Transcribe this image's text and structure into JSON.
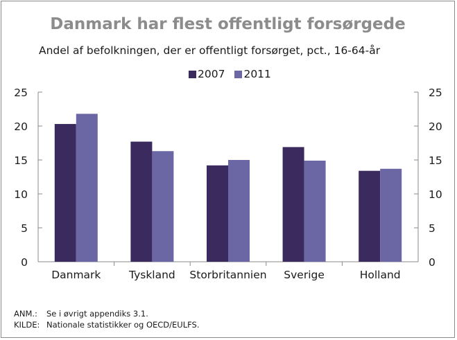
{
  "chart_data": {
    "type": "bar",
    "title": "Danmark har flest offentligt forsørgede",
    "subtitle": "Andel af befolkningen, der er offentligt forsørget, pct., 16-64-år",
    "categories": [
      "Danmark",
      "Tyskland",
      "Storbritannien",
      "Sverige",
      "Holland"
    ],
    "series": [
      {
        "name": "2007",
        "color": "#3b2a5e",
        "values": [
          20.3,
          17.7,
          14.2,
          16.9,
          13.4
        ]
      },
      {
        "name": "2011",
        "color": "#6a67a4",
        "values": [
          21.8,
          16.3,
          15.0,
          14.9,
          13.7
        ]
      }
    ],
    "ylim": [
      0,
      25
    ],
    "yticks": [
      0,
      5,
      10,
      15,
      20,
      25
    ],
    "secondary_yaxis": true,
    "legend": "top-center",
    "grid": false
  },
  "notes": [
    {
      "key": "ANM.:",
      "text": "Se i øvrigt appendiks 3.1."
    },
    {
      "key": "KILDE:",
      "text": "Nationale statistikker og OECD/EULFS."
    }
  ]
}
